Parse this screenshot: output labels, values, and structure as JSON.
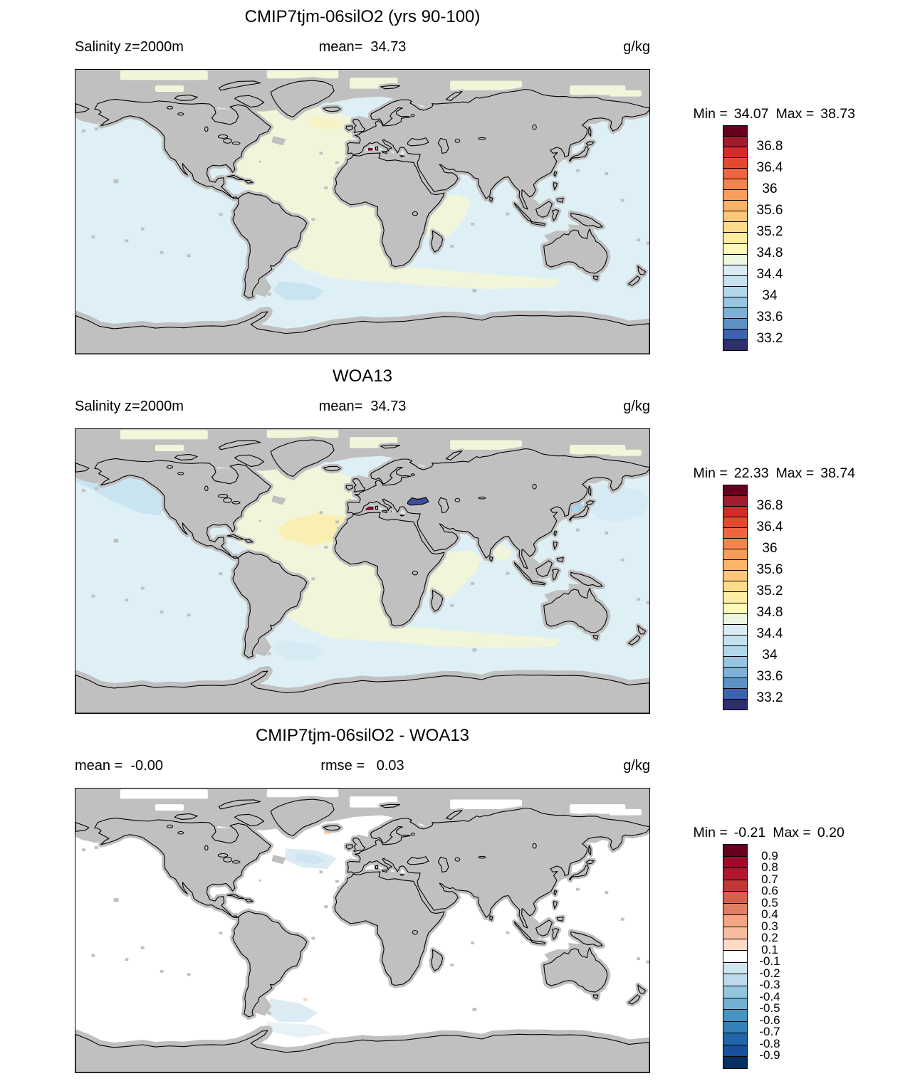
{
  "map_colors": {
    "land": "#c0c0c0",
    "coast": "#000000",
    "frame": "#000000",
    "ocean_pale_blue": "#dfeff6",
    "ocean_pale_green": "#f1f6db",
    "ocean_pale_yellow": "#f8f2c4",
    "ocean_yellow": "#f9efb2",
    "ocean_mid_blue": "#c9e4f1",
    "ocean_soft_blue": "#d6eaf4",
    "ocean_deep_blue": "#a9d5ea",
    "mediterranean_red": "#7b0d2d",
    "black_sea_navy": "#3f4d9e",
    "diff_pale_blue": "#dcebf4",
    "diff_core_blue": "#cfe5f1",
    "diff_salmon": "#f6cdb2",
    "diff_faint_blue": "#e7f1f8",
    "white": "#ffffff"
  },
  "panels": [
    {
      "id": "model",
      "title": "CMIP7tjm-06silO2 (yrs 90-100)",
      "left_label": "Salinity z=2000m",
      "center_label": "mean=  34.73",
      "units": "g/kg",
      "min_label": "Min =",
      "min": "34.07",
      "max_label": "Max =",
      "max": "38.73",
      "colorbar": {
        "colors": [
          "#67001f",
          "#a01b2c",
          "#d32b27",
          "#e4492f",
          "#ef6540",
          "#f5834d",
          "#f89d59",
          "#fbb468",
          "#fcc878",
          "#fddb8b",
          "#feeca0",
          "#fefbb7",
          "#edf6df",
          "#d9ecf4",
          "#c4e2ef",
          "#b0d7ea",
          "#96c5e1",
          "#7cb0d6",
          "#5c91c4",
          "#3d63ae",
          "#2e2f6c"
        ],
        "ticks": [
          {
            "label": "36.8",
            "pos": 2
          },
          {
            "label": "36.4",
            "pos": 4
          },
          {
            "label": "36",
            "pos": 6
          },
          {
            "label": "35.6",
            "pos": 8
          },
          {
            "label": "35.2",
            "pos": 10
          },
          {
            "label": "34.8",
            "pos": 12
          },
          {
            "label": "34.4",
            "pos": 14
          },
          {
            "label": "34",
            "pos": 16
          },
          {
            "label": "33.6",
            "pos": 18
          },
          {
            "label": "33.2",
            "pos": 20
          }
        ]
      }
    },
    {
      "id": "obs",
      "title": "WOA13",
      "left_label": "Salinity z=2000m",
      "center_label": "mean=  34.73",
      "units": "g/kg",
      "min_label": "Min =",
      "min": "22.33",
      "max_label": "Max =",
      "max": "38.74",
      "colorbar": {
        "colors": [
          "#67001f",
          "#a01b2c",
          "#d32b27",
          "#e4492f",
          "#ef6540",
          "#f5834d",
          "#f89d59",
          "#fbb468",
          "#fcc878",
          "#fddb8b",
          "#feeca0",
          "#fefbb7",
          "#edf6df",
          "#d9ecf4",
          "#c4e2ef",
          "#b0d7ea",
          "#96c5e1",
          "#7cb0d6",
          "#5c91c4",
          "#3d63ae",
          "#2e2f6c"
        ],
        "ticks": [
          {
            "label": "36.8",
            "pos": 2
          },
          {
            "label": "36.4",
            "pos": 4
          },
          {
            "label": "36",
            "pos": 6
          },
          {
            "label": "35.6",
            "pos": 8
          },
          {
            "label": "35.2",
            "pos": 10
          },
          {
            "label": "34.8",
            "pos": 12
          },
          {
            "label": "34.4",
            "pos": 14
          },
          {
            "label": "34",
            "pos": 16
          },
          {
            "label": "33.6",
            "pos": 18
          },
          {
            "label": "33.2",
            "pos": 20
          }
        ]
      }
    },
    {
      "id": "diff",
      "title": "CMIP7tjm-06silO2 - WOA13",
      "left_label": "mean =  -0.00",
      "center_label": "rmse =   0.03",
      "units": "g/kg",
      "min_label": "Min =",
      "min": "-0.21",
      "max_label": "Max =",
      "max": "0.20",
      "colorbar": {
        "colors": [
          "#67001f",
          "#9c0e28",
          "#b2182b",
          "#c13639",
          "#d6604d",
          "#e17f64",
          "#f4a582",
          "#f7bc9f",
          "#fddbc7",
          "#ffffff",
          "#d1e5f0",
          "#bcdaeb",
          "#92c5de",
          "#74b0d3",
          "#4393c3",
          "#3381b9",
          "#2166ac",
          "#1a4f9c",
          "#053061"
        ],
        "ticks": [
          {
            "label": "0.9",
            "pos": 1
          },
          {
            "label": "0.8",
            "pos": 2
          },
          {
            "label": "0.7",
            "pos": 3
          },
          {
            "label": "0.6",
            "pos": 4
          },
          {
            "label": "0.5",
            "pos": 5
          },
          {
            "label": "0.4",
            "pos": 6
          },
          {
            "label": "0.3",
            "pos": 7
          },
          {
            "label": "0.2",
            "pos": 8
          },
          {
            "label": "0.1",
            "pos": 9
          },
          {
            "label": "-0.1",
            "pos": 10
          },
          {
            "label": "-0.2",
            "pos": 11
          },
          {
            "label": "-0.3",
            "pos": 12
          },
          {
            "label": "-0.4",
            "pos": 13
          },
          {
            "label": "-0.5",
            "pos": 14
          },
          {
            "label": "-0.6",
            "pos": 15
          },
          {
            "label": "-0.7",
            "pos": 16
          },
          {
            "label": "-0.8",
            "pos": 17
          },
          {
            "label": "-0.9",
            "pos": 18
          }
        ]
      }
    }
  ],
  "chart_data": [
    {
      "type": "heatmap",
      "subtype": "global-salinity-map",
      "title": "CMIP7tjm-06silO2 (yrs 90-100)",
      "variable": "Salinity",
      "depth": "z=2000m",
      "units": "g/kg",
      "stats": {
        "mean": 34.73,
        "min": 34.07,
        "max": 38.73
      },
      "colorbar_tick_labels": [
        36.8,
        36.4,
        36,
        35.6,
        35.2,
        34.8,
        34.4,
        34,
        33.6,
        33.2
      ],
      "colorbar_levels": [
        33.0,
        33.2,
        33.4,
        33.6,
        33.8,
        34.0,
        34.2,
        34.4,
        34.6,
        34.8,
        35.0,
        35.2,
        35.4,
        35.6,
        35.8,
        36.0,
        36.2,
        36.4,
        36.6,
        36.8,
        37.0,
        37.2
      ],
      "n_levels": 21,
      "legend_position": "right",
      "notes": "Atlantic basin ~34.8-35.0 (pale yellow-green), Pacific/Indian ~34.4-34.6 (pale blue), small 37+ (dark red) cells in Mediterranean, land and shallow shelves masked gray"
    },
    {
      "type": "heatmap",
      "subtype": "global-salinity-map",
      "title": "WOA13",
      "variable": "Salinity",
      "depth": "z=2000m",
      "units": "g/kg",
      "stats": {
        "mean": 34.73,
        "min": 22.33,
        "max": 38.74
      },
      "colorbar_tick_labels": [
        36.8,
        36.4,
        36,
        35.6,
        35.2,
        34.8,
        34.4,
        34,
        33.6,
        33.2
      ],
      "colorbar_levels": [
        33.0,
        33.2,
        33.4,
        33.6,
        33.8,
        34.0,
        34.2,
        34.4,
        34.6,
        34.8,
        35.0,
        35.2,
        35.4,
        35.6,
        35.8,
        36.0,
        36.2,
        36.4,
        36.6,
        36.8,
        37.0,
        37.2
      ],
      "n_levels": 21,
      "legend_position": "right",
      "notes": "Subtropical North Atlantic ~35.2 (pale yellow), NE Pacific and Sea of Japan fresher ~34.0-34.2 (blue), Mediterranean 37+ (dark red), Black Sea ~33 (navy), land masked gray"
    },
    {
      "type": "heatmap",
      "subtype": "global-difference-map",
      "title": "CMIP7tjm-06silO2 - WOA13",
      "variable": "Salinity difference",
      "depth": "z=2000m",
      "units": "g/kg",
      "stats": {
        "mean": -0.0,
        "rmse": 0.03,
        "min": -0.21,
        "max": 0.2
      },
      "colorbar_tick_labels": [
        0.9,
        0.8,
        0.7,
        0.6,
        0.5,
        0.4,
        0.3,
        0.2,
        0.1,
        -0.1,
        -0.2,
        -0.3,
        -0.4,
        -0.5,
        -0.6,
        -0.7,
        -0.8,
        -0.9
      ],
      "colorbar_levels": [
        -1.0,
        -0.9,
        -0.8,
        -0.7,
        -0.6,
        -0.5,
        -0.4,
        -0.3,
        -0.2,
        -0.1,
        0.1,
        0.2,
        0.3,
        0.4,
        0.5,
        0.6,
        0.7,
        0.8,
        0.9,
        1.0
      ],
      "n_levels": 19,
      "legend_position": "right",
      "notes": "Mostly within ±0.1 (white); weak negative (-0.1 to -0.2, pale blue) patches in mid North Atlantic and SW Atlantic near Falklands/Antarctica"
    }
  ]
}
